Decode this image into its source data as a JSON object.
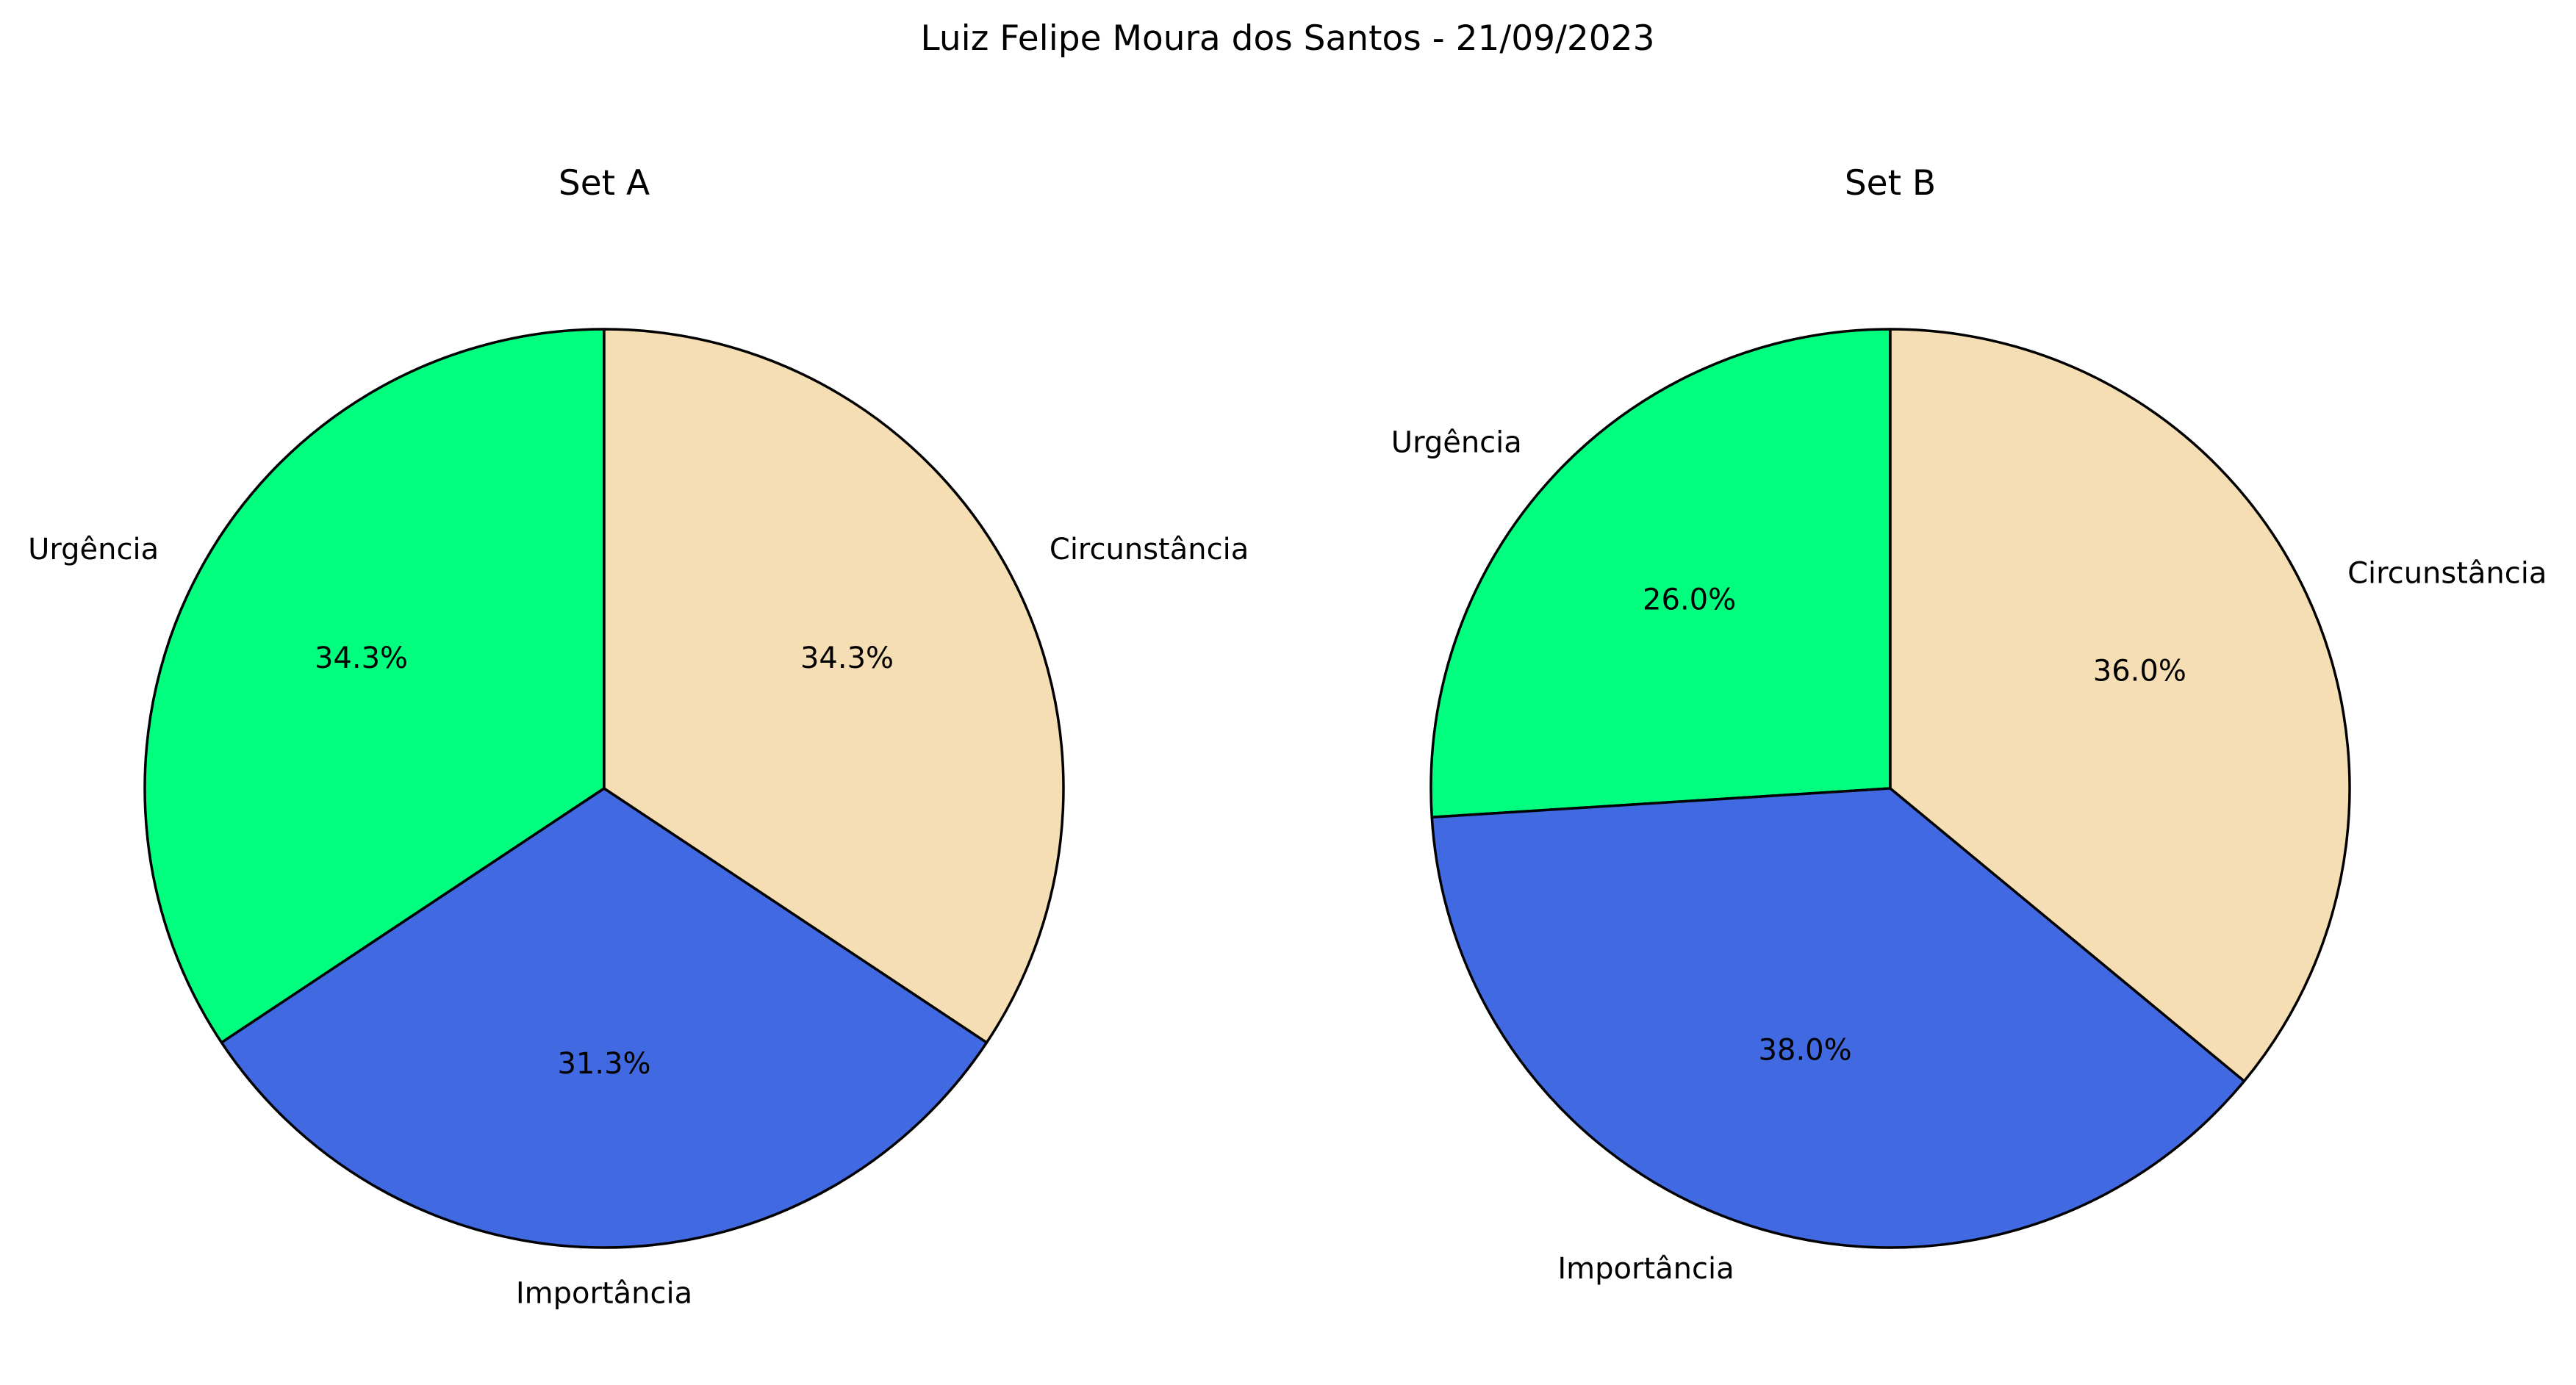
{
  "figure": {
    "title": "Luiz Felipe Moura dos Santos - 21/09/2023"
  },
  "chart_data": [
    {
      "type": "pie",
      "title": "Set A",
      "labels": [
        "Urgência",
        "Importância",
        "Circunstância"
      ],
      "values": [
        34.3,
        31.3,
        34.3
      ],
      "percent_labels": [
        "34.3%",
        "31.3%",
        "34.3%"
      ],
      "colors": [
        "#00ff7f",
        "#4169e1",
        "#f5deb3"
      ],
      "start_angle_deg": 90,
      "direction": "counterclockwise",
      "edge_color": "#000000"
    },
    {
      "type": "pie",
      "title": "Set B",
      "labels": [
        "Urgência",
        "Importância",
        "Circunstância"
      ],
      "values": [
        26.0,
        38.0,
        36.0
      ],
      "percent_labels": [
        "26.0%",
        "38.0%",
        "36.0%"
      ],
      "colors": [
        "#00ff7f",
        "#4169e1",
        "#f5deb3"
      ],
      "start_angle_deg": 90,
      "direction": "counterclockwise",
      "edge_color": "#000000"
    }
  ]
}
